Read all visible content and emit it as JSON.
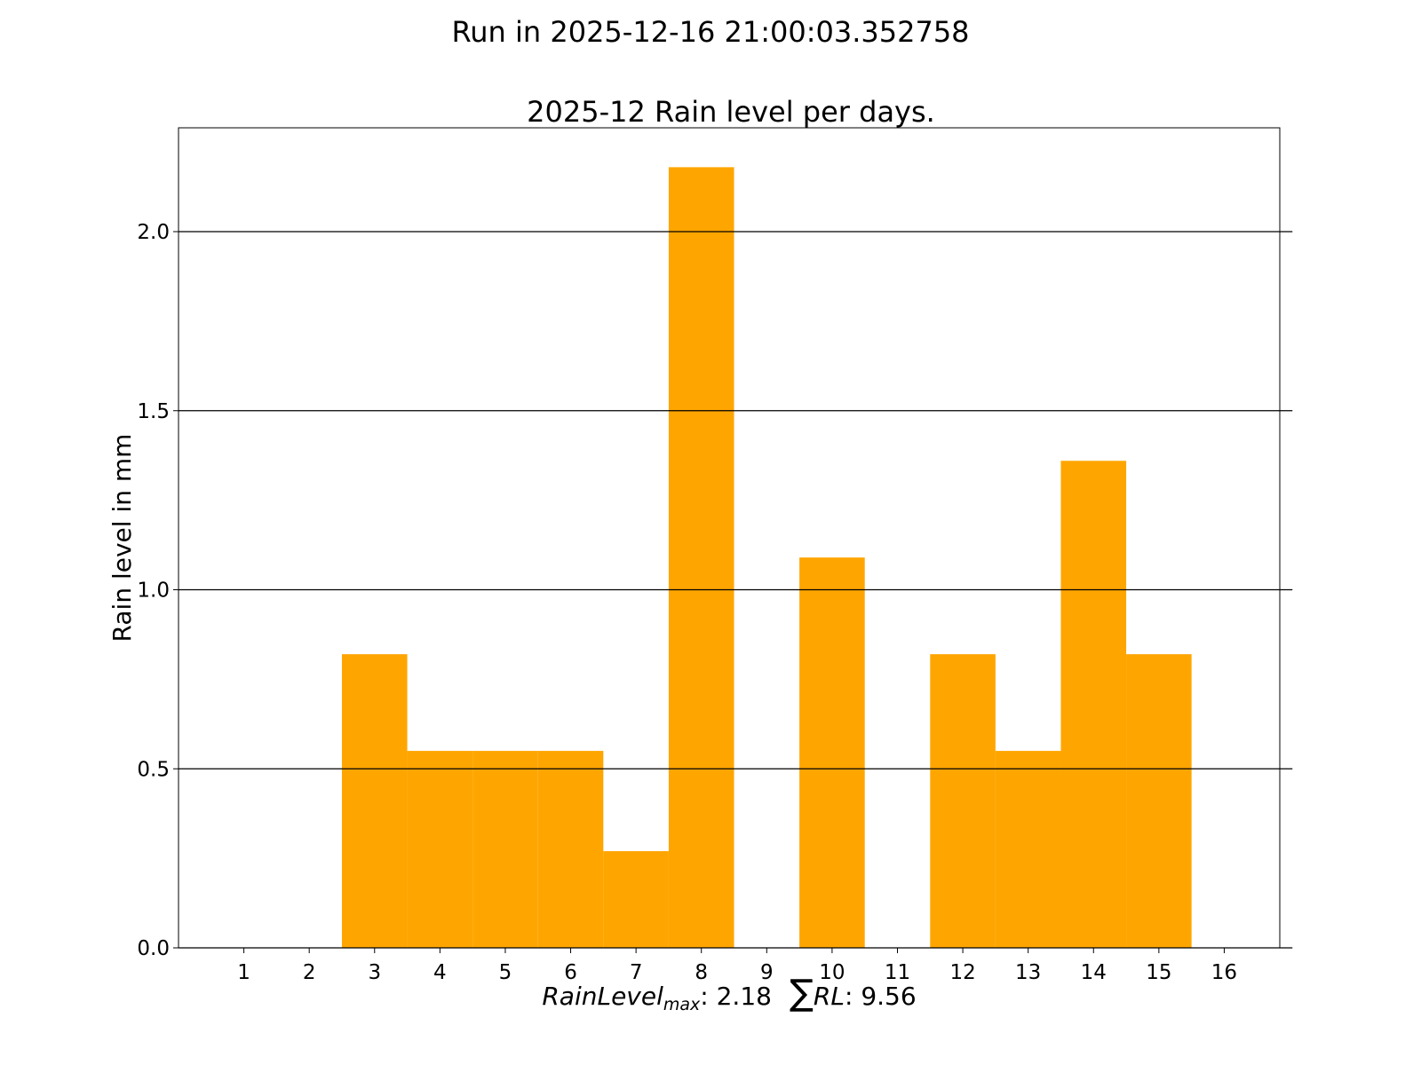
{
  "chart_data": {
    "type": "bar",
    "suptitle": "Run in 2025-12-16 21:00:03.352758",
    "title": "2025-12 Rain level per days.",
    "ylabel": "Rain level in mm",
    "xlabel": {
      "max_label": "RainLevel",
      "max_subscript": "max",
      "max_value": ": 2.18",
      "sum_symbol": "∑",
      "sum_label": "RL",
      "sum_value": ": 9.56"
    },
    "categories": [
      "1",
      "2",
      "3",
      "4",
      "5",
      "6",
      "7",
      "8",
      "9",
      "10",
      "11",
      "12",
      "13",
      "14",
      "15",
      "16"
    ],
    "values": [
      0,
      0,
      0.82,
      0.55,
      0.55,
      0.55,
      0.27,
      2.18,
      0,
      1.09,
      0,
      0.82,
      0.55,
      1.36,
      0.82,
      0
    ],
    "ylim": [
      0,
      2.29
    ],
    "yticks": [
      "0.0",
      "0.5",
      "1.0",
      "1.5",
      "2.0"
    ],
    "ytick_values": [
      0,
      0.5,
      1.0,
      1.5,
      2.0
    ],
    "grid": "horizontal",
    "bar_color": "#ffa500"
  }
}
